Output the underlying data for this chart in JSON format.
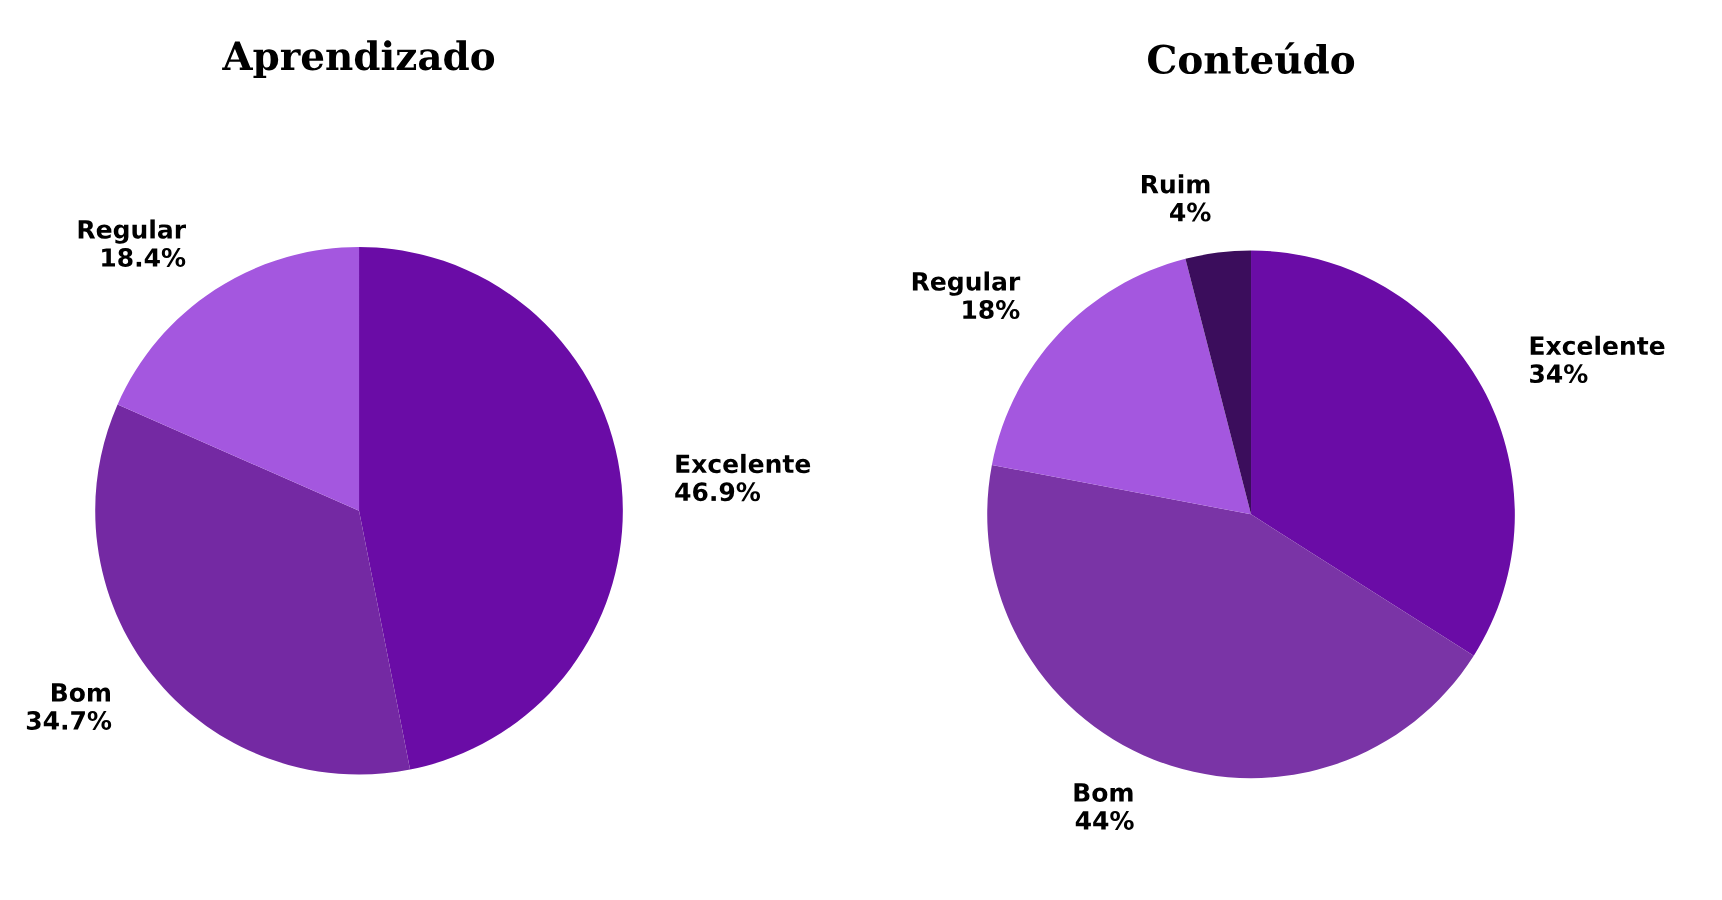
{
  "chart_data": [
    {
      "type": "pie",
      "title": "Aprendizado",
      "categories": [
        "Excelente",
        "Bom",
        "Regular"
      ],
      "values": [
        46.9,
        34.7,
        18.4
      ],
      "value_labels": [
        "46.9%",
        "34.7%",
        "18.4%"
      ],
      "colors": [
        "#6a0ca6",
        "#7429a3",
        "#a457df"
      ]
    },
    {
      "type": "pie",
      "title": "Conteúdo",
      "categories": [
        "Excelente",
        "Bom",
        "Regular",
        "Ruim"
      ],
      "values": [
        34,
        44,
        18,
        4
      ],
      "value_labels": [
        "34%",
        "44%",
        "18%",
        "4%"
      ],
      "colors": [
        "#6a0ca6",
        "#7a34a6",
        "#a457df",
        "#3b0d5c"
      ]
    }
  ]
}
